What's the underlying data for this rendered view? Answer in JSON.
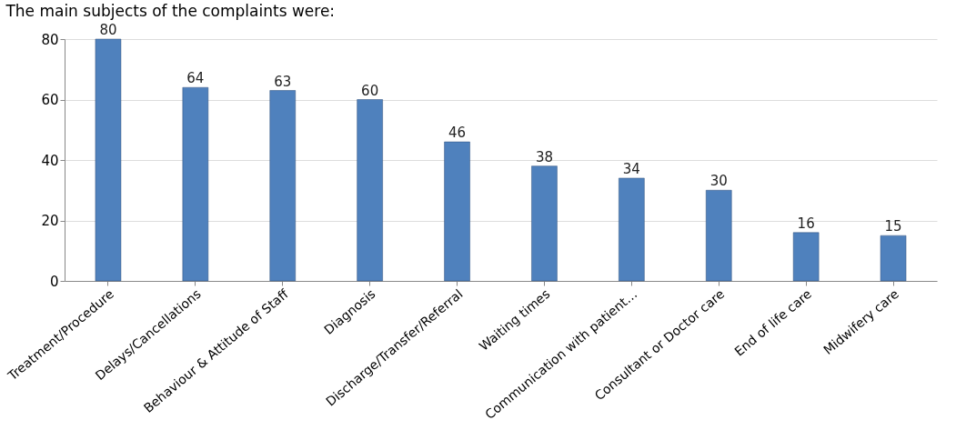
{
  "chart_data": {
    "type": "bar",
    "title": "The main subjects of the complaints were:",
    "categories": [
      "Treatment/Procedure",
      "Delays/Cancellations",
      "Behaviour & Attitude of Staff",
      "Diagnosis",
      "Discharge/Transfer/Referral",
      "Waiting times",
      "Communication with patient…",
      "Consultant or Doctor care",
      "End of life care",
      "Midwifery care"
    ],
    "values": [
      80,
      64,
      63,
      60,
      46,
      38,
      34,
      30,
      16,
      15
    ],
    "color": "#4f81bd",
    "ylim": [
      0,
      80
    ],
    "yticks": [
      0,
      20,
      40,
      60,
      80
    ],
    "grid": "y",
    "data_labels": true
  }
}
